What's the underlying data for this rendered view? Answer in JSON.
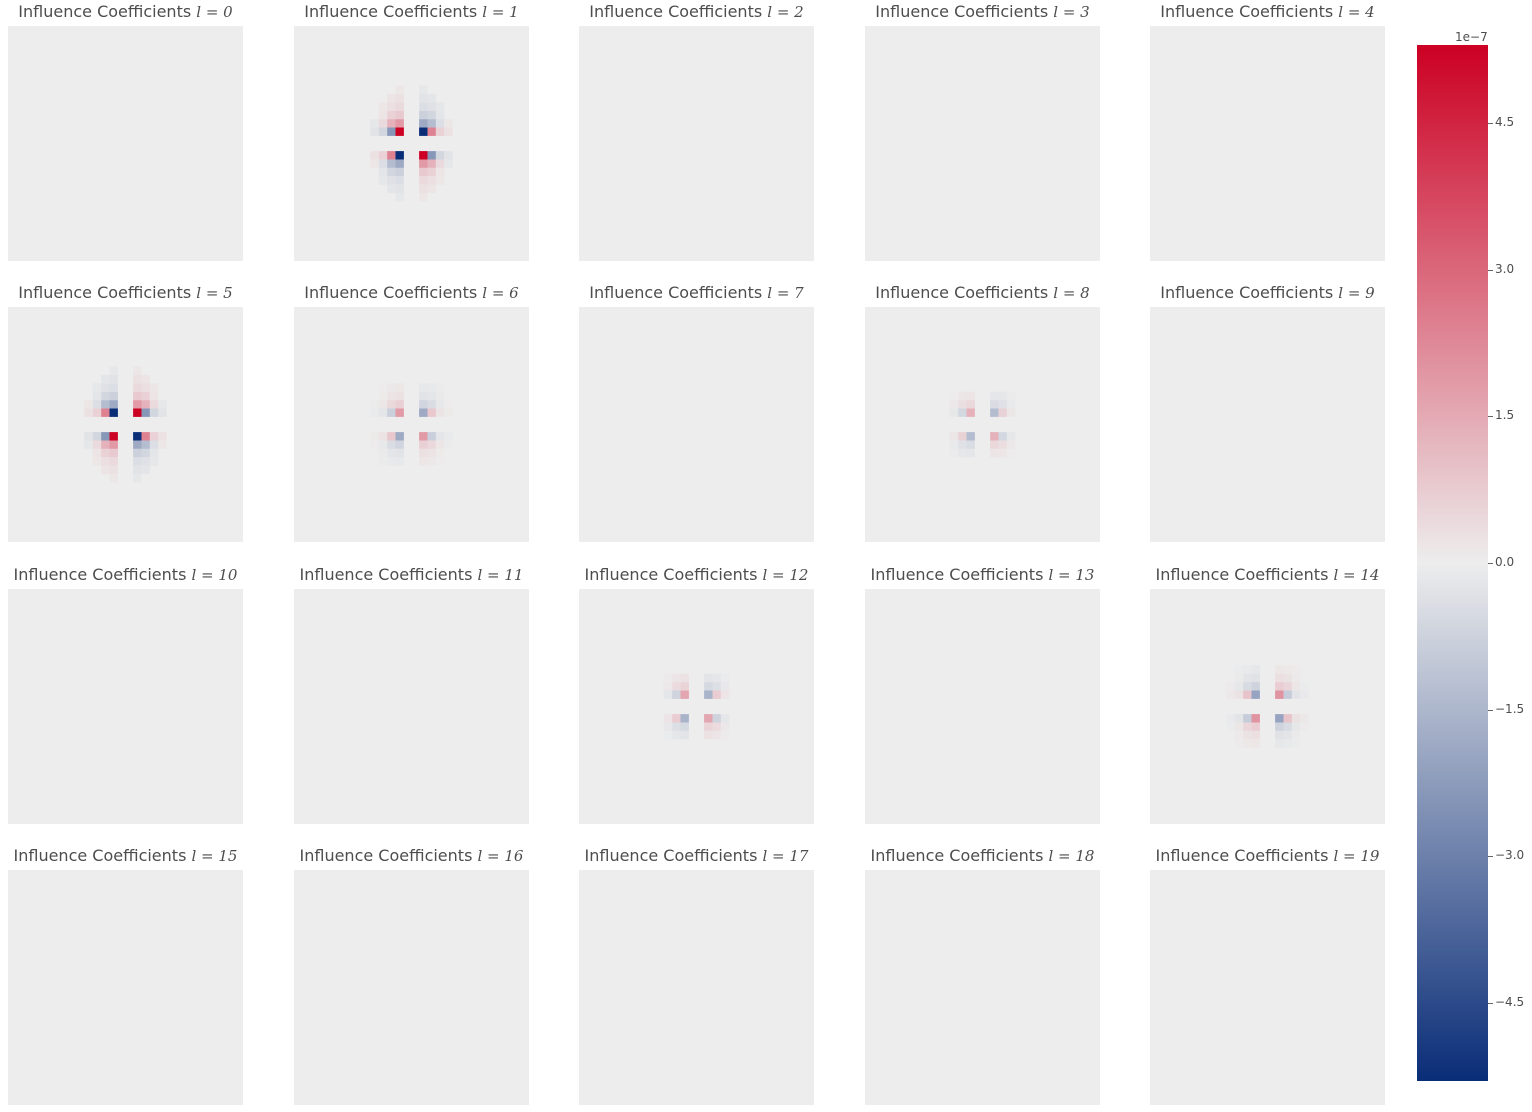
{
  "chart_data": {
    "type": "heatmap",
    "title_prefix": "Influence Coefficients",
    "panels": [
      {
        "label": "l = 0",
        "pattern": "none",
        "intensity": 0.0
      },
      {
        "label": "l = 1",
        "pattern": "strong",
        "intensity": 1.0
      },
      {
        "label": "l = 2",
        "pattern": "none",
        "intensity": 0.0
      },
      {
        "label": "l = 3",
        "pattern": "none",
        "intensity": 0.0
      },
      {
        "label": "l = 4",
        "pattern": "none",
        "intensity": 0.0
      },
      {
        "label": "l = 5",
        "pattern": "strong_alt",
        "intensity": 1.0
      },
      {
        "label": "l = 6",
        "pattern": "medium",
        "intensity": 0.35
      },
      {
        "label": "l = 7",
        "pattern": "none",
        "intensity": 0.0
      },
      {
        "label": "l = 8",
        "pattern": "small",
        "intensity": 0.25
      },
      {
        "label": "l = 9",
        "pattern": "none",
        "intensity": 0.0
      },
      {
        "label": "l = 10",
        "pattern": "none",
        "intensity": 0.0
      },
      {
        "label": "l = 11",
        "pattern": "none",
        "intensity": 0.0
      },
      {
        "label": "l = 12",
        "pattern": "small",
        "intensity": 0.3
      },
      {
        "label": "l = 13",
        "pattern": "none",
        "intensity": 0.0
      },
      {
        "label": "l = 14",
        "pattern": "medium_alt",
        "intensity": 0.38
      },
      {
        "label": "l = 15",
        "pattern": "none",
        "intensity": 0.0
      },
      {
        "label": "l = 16",
        "pattern": "none",
        "intensity": 0.0
      },
      {
        "label": "l = 17",
        "pattern": "none",
        "intensity": 0.0
      },
      {
        "label": "l = 18",
        "pattern": "none",
        "intensity": 0.0
      },
      {
        "label": "l = 19",
        "pattern": "none",
        "intensity": 0.0
      }
    ],
    "colorbar": {
      "exponent_label": "1e−7",
      "range": [
        -5.3,
        5.3
      ],
      "ticks": [
        4.5,
        3.0,
        1.5,
        0.0,
        -1.5,
        -3.0,
        -4.5
      ],
      "tick_labels": [
        "4.5",
        "3.0",
        "1.5",
        "0.0",
        "−1.5",
        "−3.0",
        "−4.5"
      ],
      "colormap": [
        "#0a2d78",
        "#ededed",
        "#cc0023"
      ]
    }
  }
}
